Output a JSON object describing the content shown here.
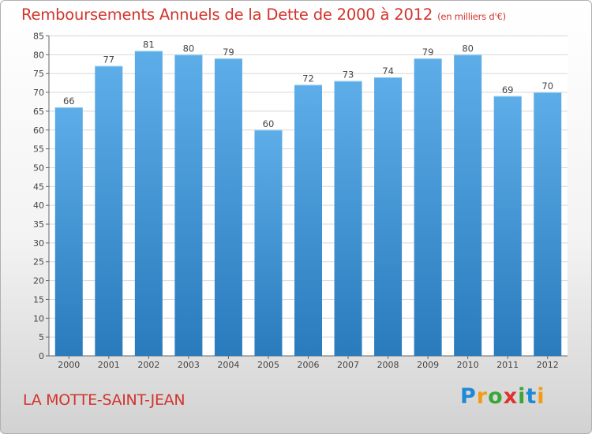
{
  "title": "Remboursements Annuels de la Dette de 2000 à 2012",
  "unit_note": "(en milliers d'€)",
  "commune": "LA MOTTE-SAINT-JEAN",
  "logo": {
    "text": "Proxiti",
    "letters": [
      {
        "ch": "P",
        "color": "#1e8ad6"
      },
      {
        "ch": "r",
        "color": "#f39c12"
      },
      {
        "ch": "o",
        "color": "#3aa637"
      },
      {
        "ch": "x",
        "color": "#e0312b"
      },
      {
        "ch": "i",
        "color": "#3aa637"
      },
      {
        "ch": "t",
        "color": "#1e8ad6"
      },
      {
        "ch": "i",
        "color": "#f39c12"
      }
    ]
  },
  "colors": {
    "bar_top": "#5dade9",
    "bar_bottom": "#2a7bbc",
    "title": "#d1342c",
    "grid": "#d8d8d8"
  },
  "chart_data": {
    "type": "bar",
    "title": "Remboursements Annuels de la Dette de 2000 à 2012",
    "xlabel": "",
    "ylabel": "",
    "categories": [
      "2000",
      "2001",
      "2002",
      "2003",
      "2004",
      "2005",
      "2006",
      "2007",
      "2008",
      "2009",
      "2010",
      "2011",
      "2012"
    ],
    "values": [
      66,
      77,
      81,
      80,
      79,
      60,
      72,
      73,
      74,
      79,
      80,
      69,
      70
    ],
    "ylim": [
      0,
      85
    ],
    "yticks": [
      0,
      5,
      10,
      15,
      20,
      25,
      30,
      35,
      40,
      45,
      50,
      55,
      60,
      65,
      70,
      75,
      80,
      85
    ],
    "grid": true
  }
}
